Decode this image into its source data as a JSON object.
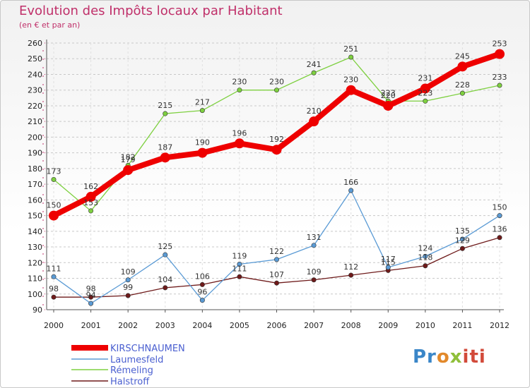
{
  "title": "Evolution des Impôts locaux par Habitant",
  "subtitle": "(en € et par an)",
  "logo": {
    "text": "Proxiti",
    "parts": [
      "Pr",
      "o",
      "x",
      "iti"
    ]
  },
  "chart_data": {
    "type": "line",
    "x": [
      "2000",
      "2001",
      "2002",
      "2003",
      "2004",
      "2005",
      "2006",
      "2007",
      "2008",
      "2009",
      "2010",
      "2011",
      "2012"
    ],
    "ylim": [
      90,
      260
    ],
    "yticks": [
      90,
      100,
      110,
      120,
      130,
      140,
      150,
      160,
      170,
      180,
      190,
      200,
      210,
      220,
      230,
      240,
      250,
      260
    ],
    "grid": "horizontal dashed",
    "legend_position": "bottom-left",
    "series": [
      {
        "name": "KIRSCHNAUMEN",
        "color": "#ee0000",
        "values": [
          150,
          162,
          179,
          187,
          190,
          196,
          192,
          210,
          230,
          220,
          231,
          245,
          253
        ],
        "labels": [
          "150",
          "162",
          "179",
          "187",
          "190",
          "196",
          "192",
          "210",
          "230",
          "220",
          "231",
          "245",
          "253"
        ]
      },
      {
        "name": "Laumesfeld",
        "color": "#5b9bd5",
        "values": [
          111,
          94,
          109,
          125,
          96,
          119,
          122,
          131,
          166,
          117,
          124,
          135,
          150
        ],
        "labels": [
          "111",
          "94",
          "109",
          "125",
          "96",
          "119",
          "122",
          "131",
          "166",
          "117",
          "124",
          "135",
          "150"
        ]
      },
      {
        "name": "Rémeling",
        "color": "#7ed040",
        "values": [
          173,
          153,
          182,
          215,
          217,
          230,
          230,
          241,
          251,
          223,
          223,
          228,
          233
        ],
        "labels": [
          "173",
          "153",
          "182",
          "215",
          "217",
          "230",
          "230",
          "241",
          "251",
          "223",
          "223",
          "228",
          "233"
        ]
      },
      {
        "name": "Halstroff",
        "color": "#6e1a1a",
        "values": [
          98,
          98,
          99,
          104,
          106,
          111,
          107,
          109,
          112,
          115,
          118,
          129,
          136
        ],
        "labels": [
          "98",
          "98",
          "99",
          "104",
          "106",
          "111",
          "107",
          "109",
          "112",
          "115",
          "118",
          "129",
          "136"
        ]
      }
    ]
  }
}
